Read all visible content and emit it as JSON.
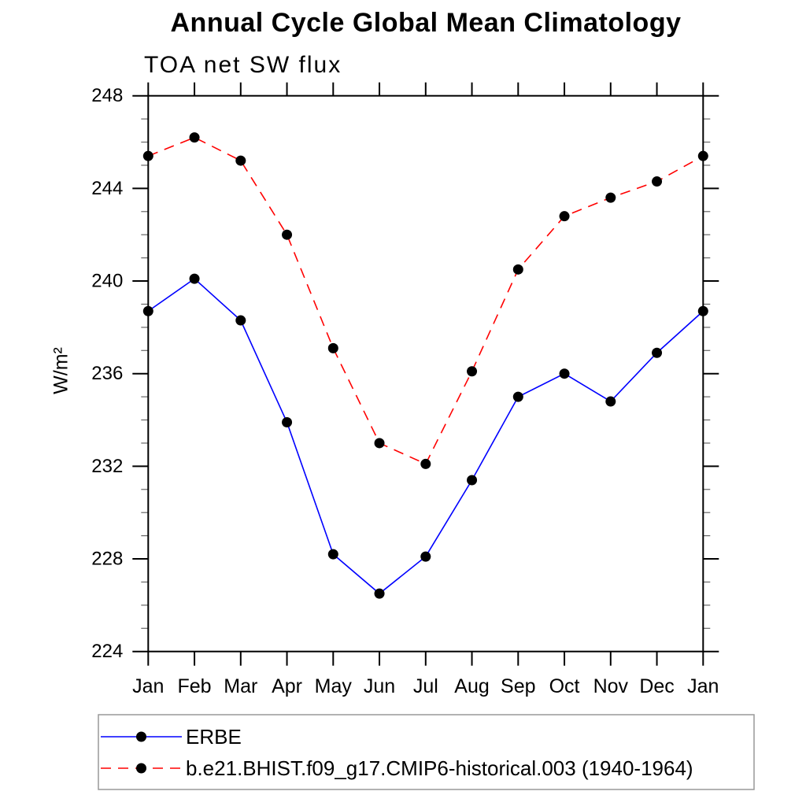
{
  "chart_data": {
    "type": "line",
    "title": "Annual Cycle Global Mean Climatology",
    "subtitle": "TOA net SW flux",
    "xlabel": "",
    "ylabel": "W/m²",
    "x_labels": [
      "Jan",
      "Feb",
      "Mar",
      "Apr",
      "May",
      "Jun",
      "Jul",
      "Aug",
      "Sep",
      "Oct",
      "Nov",
      "Dec",
      "Jan"
    ],
    "ylim": [
      224,
      248
    ],
    "ytick_major": [
      224,
      228,
      232,
      236,
      240,
      244,
      248
    ],
    "ytick_minor_step": 1,
    "grid": false,
    "axis_color": "#000000",
    "minor_tick_color": "#666666",
    "legend_position": "bottom-left-box",
    "legend_border_color": "#999999",
    "series": [
      {
        "name": "ERBE",
        "color": "#0000ff",
        "line_style": "solid",
        "marker": "filled-circle",
        "marker_color": "#000000",
        "values": [
          238.7,
          240.1,
          238.3,
          233.9,
          228.2,
          226.5,
          228.1,
          231.4,
          235.0,
          236.0,
          234.8,
          236.9,
          238.7
        ]
      },
      {
        "name": "b.e21.BHIST.f09_g17.CMIP6-historical.003 (1940-1964)",
        "color": "#ff0000",
        "line_style": "dashed",
        "marker": "filled-circle",
        "marker_color": "#000000",
        "values": [
          245.4,
          246.2,
          245.2,
          242.0,
          237.1,
          233.0,
          232.1,
          236.1,
          240.5,
          242.8,
          243.6,
          244.3,
          245.4
        ]
      }
    ]
  }
}
